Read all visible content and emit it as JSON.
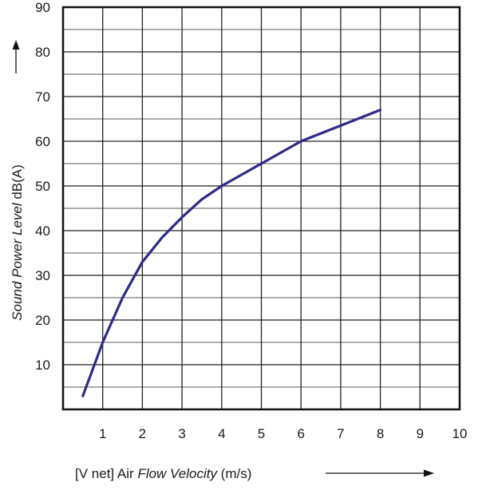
{
  "chart_data": {
    "type": "line",
    "title": "",
    "xlabel": {
      "prefix": "[V net]  Air ",
      "emphasis": "Flow Velocity",
      "suffix": "  (m/s)"
    },
    "ylabel": {
      "emphasis": "Sound Power Level",
      "suffix": "  dB(A)"
    },
    "xlim": [
      0,
      10
    ],
    "ylim": [
      0,
      90
    ],
    "x_ticks": [
      1,
      2,
      3,
      4,
      5,
      6,
      7,
      8,
      9,
      10
    ],
    "y_ticks": [
      10,
      20,
      30,
      40,
      50,
      60,
      70,
      80,
      90
    ],
    "grid": true,
    "minor_y_grid_step": 5,
    "series": [
      {
        "color": "#2e2a8c",
        "x": [
          0.5,
          1,
          1.5,
          2,
          2.5,
          3,
          3.5,
          4,
          5,
          6,
          7,
          8
        ],
        "y": [
          3,
          15,
          25,
          33,
          38.5,
          43,
          47,
          50,
          55,
          60,
          63.5,
          67
        ]
      }
    ]
  }
}
